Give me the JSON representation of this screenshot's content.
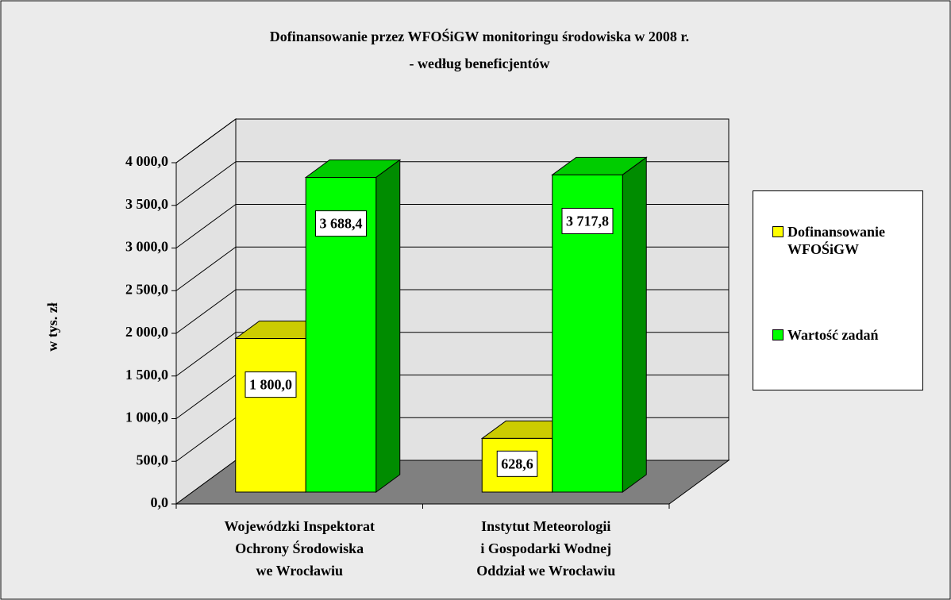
{
  "chart_data": {
    "type": "bar3d",
    "title": [
      "Dofinansowanie przez WFOŚiGW monitoringu środowiska  w 2008 r.",
      "- według beneficjentów"
    ],
    "y_label": "w tys. zł",
    "categories": [
      [
        "Wojewódzki Inspektorat",
        "Ochrony Środowiska",
        "we Wrocławiu"
      ],
      [
        "Instytut Meteorologii",
        "i Gospodarki Wodnej",
        "Oddział we Wrocławiu"
      ]
    ],
    "series": [
      {
        "name": "Dofinansowanie WFOŚiGW",
        "color": "#ffff00",
        "values": [
          1800,
          628.6
        ],
        "value_labels": [
          "1 800,0",
          "628,6"
        ]
      },
      {
        "name": "Wartość zadań",
        "color": "#00ff00",
        "values": [
          3688.4,
          3717.8
        ],
        "value_labels": [
          "3 688,4",
          "3 717,8"
        ]
      }
    ],
    "ylim": [
      0,
      4000
    ],
    "yticks": [
      {
        "value": 0,
        "label": "0,0"
      },
      {
        "value": 500,
        "label": "500,0"
      },
      {
        "value": 1000,
        "label": "1 000,0"
      },
      {
        "value": 1500,
        "label": "1 500,0"
      },
      {
        "value": 2000,
        "label": "2 000,0"
      },
      {
        "value": 2500,
        "label": "2 500,0"
      },
      {
        "value": 3000,
        "label": "3 000,0"
      },
      {
        "value": 3500,
        "label": "3 500,0"
      },
      {
        "value": 4000,
        "label": "4 000,0"
      }
    ],
    "grid": true,
    "legend": "right"
  }
}
